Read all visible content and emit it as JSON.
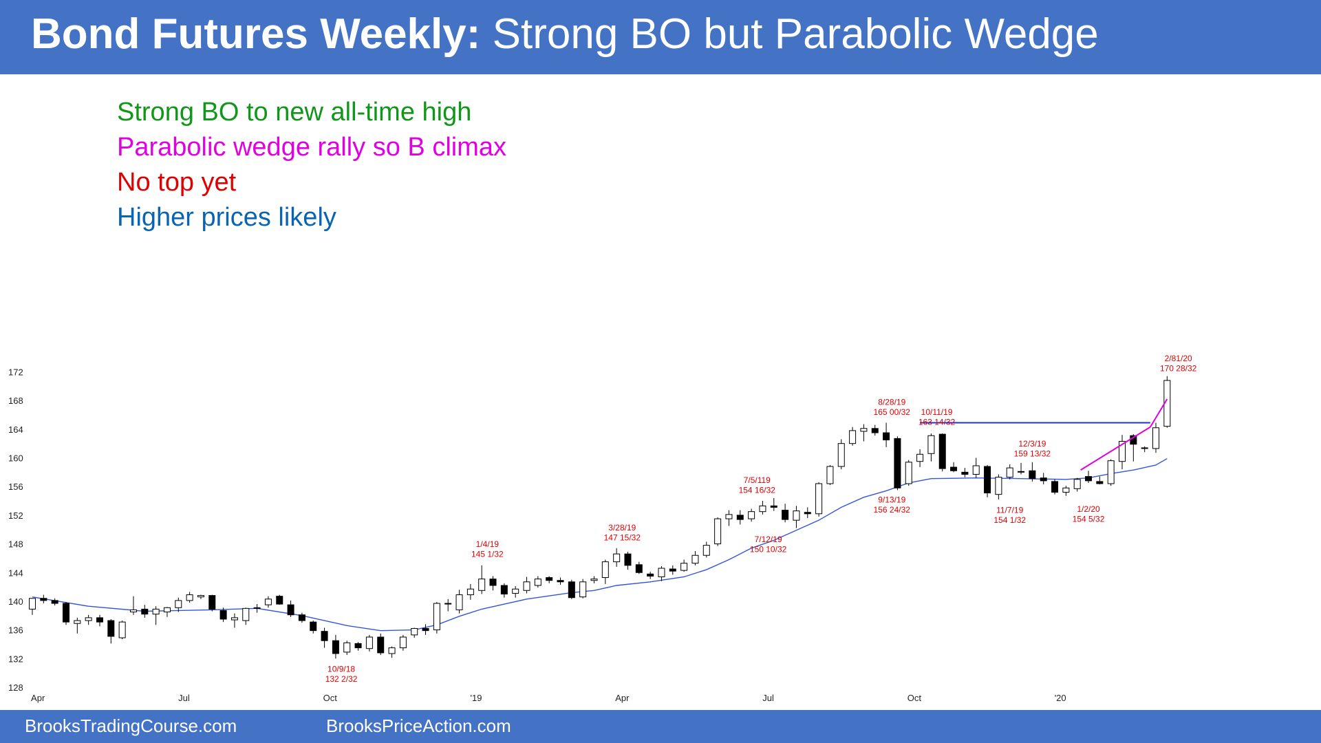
{
  "header": {
    "title_bold": "Bond Futures Weekly:",
    "title_rest": " Strong BO but Parabolic Wedge"
  },
  "notes": [
    {
      "text": "Strong BO to new all-time high",
      "color": "#109618"
    },
    {
      "text": "Parabolic wedge rally so B climax",
      "color": "#e000e0"
    },
    {
      "text": "No top yet",
      "color": "#e00000"
    },
    {
      "text": "Higher prices likely",
      "color": "#0a64b4"
    }
  ],
  "footer": {
    "left": "BrooksTradingCourse.com",
    "right": "BrooksPriceAction.com"
  },
  "chart_data": {
    "type": "candlestick",
    "timeframe": "weekly",
    "ylim": [
      128,
      174
    ],
    "yticks": [
      128,
      132,
      136,
      140,
      144,
      148,
      152,
      156,
      160,
      164,
      168,
      172
    ],
    "xticks": [
      {
        "label": "Apr",
        "week": 0.5
      },
      {
        "label": "Jul",
        "week": 13.5
      },
      {
        "label": "Oct",
        "week": 26.5
      },
      {
        "label": "'19",
        "week": 39.5
      },
      {
        "label": "Apr",
        "week": 52.5
      },
      {
        "label": "Jul",
        "week": 65.5
      },
      {
        "label": "Oct",
        "week": 78.5
      },
      {
        "label": "'20",
        "week": 91.5
      }
    ],
    "candles": [
      [
        139,
        140.5,
        138.2,
        140.5
      ],
      [
        140.5,
        141,
        139.8,
        140.2
      ],
      [
        140.2,
        140.5,
        139.5,
        139.8
      ],
      [
        139.8,
        140,
        136.8,
        137.2
      ],
      [
        137,
        137.8,
        135.6,
        137.4
      ],
      [
        137.4,
        138.2,
        136.8,
        137.8
      ],
      [
        137.8,
        138.2,
        136.6,
        137.2
      ],
      [
        137.4,
        137.6,
        134.2,
        135.2
      ],
      [
        135,
        137.4,
        134.8,
        137.2
      ],
      [
        138.6,
        140.8,
        138.2,
        138.9
      ],
      [
        139,
        139.6,
        137.8,
        138.3
      ],
      [
        138.3,
        139.4,
        136.8,
        139
      ],
      [
        138.6,
        139.3,
        137.9,
        139.2
      ],
      [
        139.2,
        140.6,
        138.6,
        140.2
      ],
      [
        140.2,
        141.4,
        139.9,
        141
      ],
      [
        140.7,
        141,
        140.4,
        140.9
      ],
      [
        140.9,
        141,
        138.7,
        139
      ],
      [
        138.8,
        139.2,
        137.2,
        137.6
      ],
      [
        137.5,
        138.4,
        136.4,
        137.8
      ],
      [
        137.4,
        139.2,
        136.8,
        139.1
      ],
      [
        139.1,
        139.7,
        138.5,
        139.2
      ],
      [
        139.6,
        140.8,
        139.2,
        140.4
      ],
      [
        140.8,
        141,
        139.6,
        139.7
      ],
      [
        139.6,
        140.2,
        137.9,
        138.2
      ],
      [
        138.2,
        138.5,
        137.1,
        137.4
      ],
      [
        137.2,
        137.4,
        135.6,
        136
      ],
      [
        135.9,
        136.4,
        133.6,
        134.6
      ],
      [
        134.6,
        135.4,
        132.1,
        132.8
      ],
      [
        133,
        134.6,
        132.6,
        134.3
      ],
      [
        134.2,
        134.4,
        133.2,
        133.6
      ],
      [
        133.5,
        135.4,
        133.1,
        135.1
      ],
      [
        135.1,
        135.6,
        132.6,
        132.9
      ],
      [
        132.8,
        133.8,
        132.2,
        133.6
      ],
      [
        133.6,
        135.4,
        133.2,
        135.1
      ],
      [
        135.4,
        136.4,
        135,
        136.3
      ],
      [
        136.3,
        136.9,
        135.4,
        136
      ],
      [
        136.1,
        140,
        135.6,
        139.8
      ],
      [
        139.8,
        140.4,
        138.7,
        139.7
      ],
      [
        138.9,
        141.7,
        138.4,
        141
      ],
      [
        141,
        142.5,
        140.3,
        141.8
      ],
      [
        141.6,
        145.1,
        141.1,
        143.2
      ],
      [
        143.2,
        143.6,
        141.6,
        142.3
      ],
      [
        142.3,
        142.6,
        140.6,
        141.1
      ],
      [
        141.2,
        142.2,
        140.6,
        141.8
      ],
      [
        141.6,
        143.5,
        141.2,
        142.8
      ],
      [
        142.3,
        143.6,
        142,
        143.2
      ],
      [
        143.4,
        143.6,
        142.6,
        143
      ],
      [
        143,
        143.4,
        142.4,
        142.8
      ],
      [
        142.8,
        143.1,
        140.4,
        140.6
      ],
      [
        140.7,
        143.2,
        140.5,
        142.8
      ],
      [
        143,
        143.6,
        142.6,
        143.2
      ],
      [
        143.4,
        145.9,
        142.5,
        145.6
      ],
      [
        145.6,
        147.5,
        144.9,
        146.7
      ],
      [
        146.7,
        147,
        144.5,
        145.1
      ],
      [
        145.2,
        145.6,
        143.9,
        144.1
      ],
      [
        143.9,
        144.2,
        143.2,
        143.6
      ],
      [
        143.5,
        145,
        142.9,
        144.7
      ],
      [
        144.6,
        145.1,
        143.8,
        144.3
      ],
      [
        144.4,
        145.9,
        144.2,
        145.4
      ],
      [
        145.4,
        147.1,
        145.1,
        146.5
      ],
      [
        146.5,
        148.4,
        146.2,
        147.9
      ],
      [
        148.1,
        151.8,
        147.8,
        151.6
      ],
      [
        151.6,
        152.8,
        150.6,
        152.2
      ],
      [
        152.1,
        152.8,
        150.8,
        151.5
      ],
      [
        151.6,
        153,
        151.2,
        152.6
      ],
      [
        152.6,
        154.1,
        152.2,
        153.4
      ],
      [
        153.4,
        154.5,
        152.7,
        153.2
      ],
      [
        152.8,
        153.7,
        151.1,
        151.5
      ],
      [
        151.4,
        153.4,
        150.3,
        152.7
      ],
      [
        152.5,
        153.2,
        151.7,
        152.3
      ],
      [
        152.3,
        156.7,
        151.9,
        156.5
      ],
      [
        156.5,
        159.1,
        156.3,
        158.9
      ],
      [
        158.9,
        162.7,
        158.5,
        162.1
      ],
      [
        162.1,
        164.4,
        161.8,
        163.9
      ],
      [
        163.8,
        164.8,
        162.4,
        164.2
      ],
      [
        164.2,
        164.7,
        163.2,
        163.6
      ],
      [
        163.6,
        165,
        161.6,
        162.6
      ],
      [
        162.8,
        163.1,
        155.6,
        155.9
      ],
      [
        156.5,
        159.8,
        156.2,
        159.5
      ],
      [
        159.6,
        161.3,
        158.8,
        160.6
      ],
      [
        160.7,
        163.5,
        159.6,
        163.2
      ],
      [
        163.4,
        163.5,
        158.2,
        158.6
      ],
      [
        158.8,
        159.5,
        158.1,
        158.3
      ],
      [
        158.1,
        158.7,
        157.4,
        157.8
      ],
      [
        157.8,
        160.1,
        157.3,
        159
      ],
      [
        158.9,
        159.1,
        154.6,
        155.2
      ],
      [
        155,
        157.8,
        154.3,
        157.4
      ],
      [
        157.4,
        159.2,
        157.1,
        158.7
      ],
      [
        158.2,
        159.4,
        157.8,
        158.1
      ],
      [
        158.3,
        159.5,
        156.8,
        157.2
      ],
      [
        157.3,
        158,
        156.4,
        156.9
      ],
      [
        156.8,
        157.1,
        155,
        155.3
      ],
      [
        155.3,
        156.2,
        154.8,
        155.9
      ],
      [
        155.8,
        157.3,
        155.4,
        157.1
      ],
      [
        157.5,
        158.3,
        156.6,
        156.9
      ],
      [
        156.8,
        157.5,
        156.4,
        156.5
      ],
      [
        156.5,
        159.9,
        156.2,
        159.7
      ],
      [
        159.6,
        163.3,
        158.5,
        162.4
      ],
      [
        163.2,
        163.4,
        159.6,
        162
      ],
      [
        161.4,
        161.7,
        160.9,
        161.5
      ],
      [
        161.4,
        165,
        160.8,
        164.3
      ],
      [
        164.5,
        171.5,
        164.3,
        170.9
      ]
    ],
    "ema": [
      [
        0,
        140.7
      ],
      [
        5,
        139.4
      ],
      [
        10,
        138.7
      ],
      [
        16,
        138.9
      ],
      [
        20,
        139.1
      ],
      [
        24,
        138.1
      ],
      [
        28,
        136.7
      ],
      [
        31,
        136
      ],
      [
        34,
        136.1
      ],
      [
        36,
        136.8
      ],
      [
        38,
        138
      ],
      [
        40,
        139
      ],
      [
        44,
        140.4
      ],
      [
        48,
        141.3
      ],
      [
        50,
        141.6
      ],
      [
        52,
        142.3
      ],
      [
        55,
        142.8
      ],
      [
        58,
        143.5
      ],
      [
        60,
        144.5
      ],
      [
        62,
        145.9
      ],
      [
        64,
        147.5
      ],
      [
        66,
        148.6
      ],
      [
        68,
        150
      ],
      [
        70,
        151.4
      ],
      [
        72,
        153.2
      ],
      [
        74,
        154.6
      ],
      [
        76,
        155.5
      ],
      [
        78,
        156.6
      ],
      [
        80,
        157.2
      ],
      [
        84,
        157.3
      ],
      [
        88,
        157.2
      ],
      [
        92,
        157.1
      ],
      [
        94,
        157.3
      ],
      [
        96,
        157.9
      ],
      [
        98,
        158.4
      ],
      [
        100,
        159.1
      ],
      [
        101,
        160
      ]
    ],
    "lines": [
      {
        "name": "resistance",
        "color": "#2030d0",
        "from": [
          79,
          165
        ],
        "to": [
          99.5,
          165
        ]
      },
      {
        "name": "wedge",
        "color": "#e000e0",
        "from": [
          93.3,
          158.4
        ],
        "to": [
          99.5,
          164.4
        ]
      },
      {
        "name": "wedge-top",
        "color": "#e000e0",
        "from": [
          99.5,
          164.4
        ],
        "to": [
          101,
          168.3
        ]
      }
    ],
    "annotations": [
      {
        "lines": [
          "10/9/18",
          "132 2/32"
        ],
        "x": 27.5,
        "y": 131.3,
        "anchor": "top"
      },
      {
        "lines": [
          "1/4/19",
          "145 1/32"
        ],
        "x": 40.5,
        "y": 146.3,
        "anchor": "bottom"
      },
      {
        "lines": [
          "3/28/19",
          "147 15/32"
        ],
        "x": 52.5,
        "y": 148.6,
        "anchor": "bottom"
      },
      {
        "lines": [
          "7/5/119",
          "154 16/32"
        ],
        "x": 64.5,
        "y": 155.2,
        "anchor": "bottom"
      },
      {
        "lines": [
          "7/12/19",
          "150 10/32"
        ],
        "x": 65.5,
        "y": 149.4,
        "anchor": "top"
      },
      {
        "lines": [
          "8/28/19",
          "165 00/32"
        ],
        "x": 76.5,
        "y": 166.1,
        "anchor": "bottom"
      },
      {
        "lines": [
          "10/11/19",
          "163 14/32"
        ],
        "x": 80.5,
        "y": 164.7,
        "anchor": "bottom"
      },
      {
        "lines": [
          "9/13/19",
          "156 24/32"
        ],
        "x": 76.5,
        "y": 154.9,
        "anchor": "top"
      },
      {
        "lines": [
          "12/3/19",
          "159 13/32"
        ],
        "x": 89,
        "y": 160.3,
        "anchor": "bottom"
      },
      {
        "lines": [
          "11/7/19",
          "154 1/32"
        ],
        "x": 87,
        "y": 153.5,
        "anchor": "top"
      },
      {
        "lines": [
          "1/2/20",
          "154 5/32"
        ],
        "x": 94,
        "y": 153.6,
        "anchor": "top"
      },
      {
        "lines": [
          "2/81/20",
          "170 28/32"
        ],
        "x": 102,
        "y": 172.2,
        "anchor": "bottom"
      }
    ]
  }
}
